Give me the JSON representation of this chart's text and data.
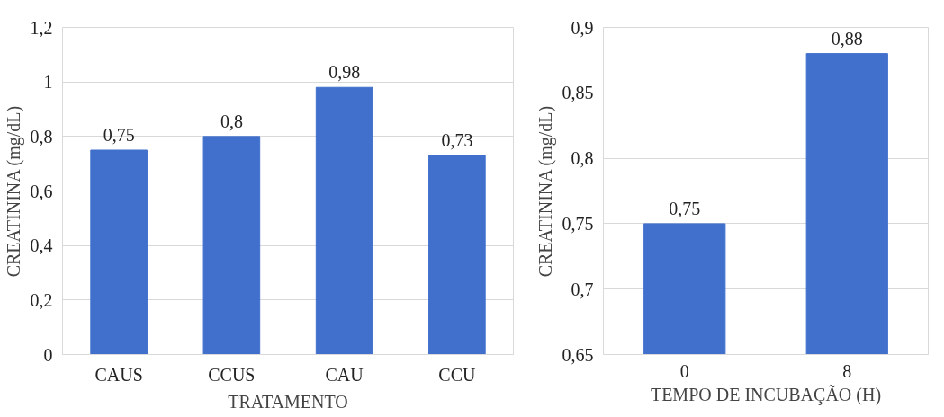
{
  "chart_data": [
    {
      "type": "bar",
      "xlabel": "TRATAMENTO",
      "ylabel": "CREATININA (mg/dL)",
      "categories": [
        "CAUS",
        "CCUS",
        "CAU",
        "CCU"
      ],
      "values": [
        0.75,
        0.8,
        0.98,
        0.73
      ],
      "color": "#4070cc",
      "value_labels": [
        "0,75",
        "0,8",
        "0,98",
        "0,73"
      ],
      "ylim": [
        0,
        1.2
      ],
      "yticks": [
        0,
        {
          "value": 0.2,
          "label": "0,2"
        },
        {
          "value": 0.4,
          "label": "0,4"
        },
        {
          "value": 0.6,
          "label": "0,6"
        },
        {
          "value": 0.8,
          "label": "0,8"
        },
        1,
        {
          "value": 1.2,
          "label": "1,2"
        }
      ],
      "grid": "y"
    },
    {
      "type": "bar",
      "xlabel": "TEMPO DE INCUBAÇÃO (H)",
      "ylabel": "CREATININA (mg/dL)",
      "categories": [
        "0",
        "8"
      ],
      "values": [
        0.75,
        0.88
      ],
      "color": "#4070cc",
      "value_labels": [
        "0,75",
        "0,88"
      ],
      "ylim": [
        0.65,
        0.9
      ],
      "yticks": [
        {
          "value": 0.65,
          "label": "0,65"
        },
        {
          "value": 0.7,
          "label": "0,7"
        },
        {
          "value": 0.75,
          "label": "0,75"
        },
        {
          "value": 0.8,
          "label": "0,8"
        },
        {
          "value": 0.85,
          "label": "0,85"
        },
        {
          "value": 0.9,
          "label": "0,9"
        }
      ],
      "grid": "y"
    }
  ]
}
